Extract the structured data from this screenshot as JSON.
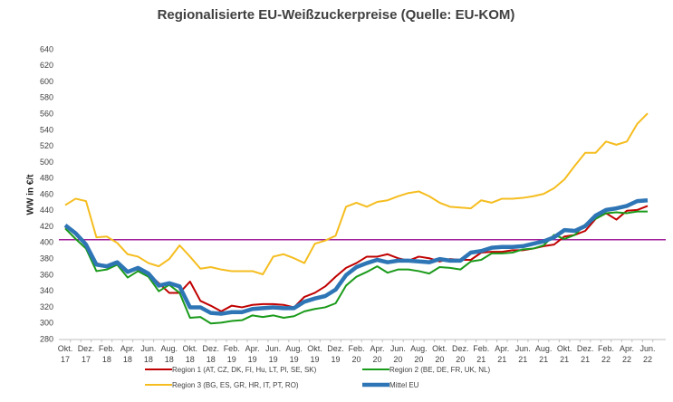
{
  "chart_data": {
    "type": "line",
    "title": "Regionalisierte EU-Weißzuckerpreise (Quelle: EU-KOM)",
    "y_label": "WW in €/t",
    "categories": [
      "Okt.\n17",
      null,
      "Dez.\n17",
      null,
      "Feb.\n18",
      null,
      "Apr.\n18",
      null,
      "Jun.\n18",
      null,
      "Aug.\n18",
      null,
      "Okt.\n18",
      null,
      "Dez.\n18",
      null,
      "Feb.\n19",
      null,
      "Apr.\n19",
      null,
      "Jun.\n19",
      null,
      "Aug.\n19",
      null,
      "Okt.\n19",
      null,
      "Dez.\n19",
      null,
      "Feb.\n20",
      null,
      "Apr.\n20",
      null,
      "Jun.\n20",
      null,
      "Aug.\n20",
      null,
      "Okt.\n20",
      null,
      "Dez.\n20",
      null,
      "Feb.\n21",
      null,
      "Apr.\n21",
      null,
      "Jun.\n21",
      null,
      "Aug.\n21",
      null,
      "Okt.\n21",
      null,
      "Dez.\n21",
      null,
      "Feb.\n22",
      null,
      "Apr.\n22",
      null,
      "Jun.\n22"
    ],
    "series": [
      {
        "name": "Region 1 (AT, CZ, DK, FI, Hu, LT, Pl, SE, SK)",
        "color": "#c00000",
        "width": 2,
        "values": [
          420,
          412,
          400,
          375,
          371,
          374,
          365,
          367,
          362,
          350,
          338,
          338,
          352,
          328,
          322,
          315,
          322,
          320,
          323,
          324,
          324,
          323,
          320,
          333,
          338,
          346,
          358,
          369,
          375,
          383,
          383,
          386,
          381,
          378,
          383,
          381,
          377,
          380,
          379,
          379,
          388,
          389,
          389,
          391,
          391,
          393,
          396,
          398,
          408,
          410,
          415,
          430,
          437,
          429,
          440,
          441,
          446
        ]
      },
      {
        "name": "Region 2 (BE, DE, FR, UK, NL)",
        "color": "#1a9a1a",
        "width": 2,
        "values": [
          418,
          405,
          393,
          365,
          367,
          373,
          357,
          365,
          358,
          340,
          348,
          338,
          307,
          308,
          300,
          301,
          303,
          304,
          310,
          308,
          310,
          307,
          309,
          315,
          318,
          320,
          325,
          347,
          358,
          364,
          371,
          363,
          367,
          367,
          365,
          362,
          370,
          369,
          367,
          377,
          379,
          387,
          387,
          388,
          392,
          393,
          397,
          410,
          405,
          410,
          423,
          430,
          437,
          438,
          437,
          439,
          439
        ]
      },
      {
        "name": "Region 3 (BG, ES, GR, HR, IT, PT, RO)",
        "color": "#f5bd1f",
        "width": 2,
        "values": [
          447,
          455,
          452,
          407,
          408,
          400,
          386,
          383,
          375,
          371,
          380,
          397,
          383,
          368,
          370,
          367,
          365,
          365,
          365,
          361,
          383,
          386,
          381,
          375,
          399,
          403,
          409,
          445,
          450,
          445,
          451,
          453,
          458,
          462,
          464,
          458,
          450,
          445,
          444,
          443,
          453,
          450,
          455,
          455,
          456,
          458,
          461,
          468,
          479,
          496,
          512,
          512,
          526,
          522,
          526,
          548,
          561
        ]
      },
      {
        "name": "Mittel EU",
        "color": "#2e75b6",
        "width": 4.5,
        "values": [
          422,
          412,
          398,
          373,
          371,
          376,
          364,
          369,
          362,
          347,
          350,
          346,
          320,
          320,
          313,
          312,
          314,
          314,
          318,
          319,
          320,
          319,
          319,
          327,
          331,
          334,
          342,
          360,
          370,
          375,
          379,
          376,
          378,
          378,
          377,
          376,
          380,
          378,
          378,
          388,
          390,
          394,
          395,
          395,
          396,
          399,
          402,
          407,
          416,
          415,
          421,
          434,
          441,
          443,
          446,
          452,
          453
        ]
      }
    ],
    "reference_line": {
      "value": 404,
      "color": "#a0209a"
    },
    "ylim": [
      280,
      640
    ],
    "yticks": [
      280,
      300,
      320,
      340,
      360,
      380,
      400,
      420,
      440,
      460,
      480,
      500,
      520,
      540,
      560,
      580,
      600,
      620,
      640
    ],
    "grid": false
  }
}
